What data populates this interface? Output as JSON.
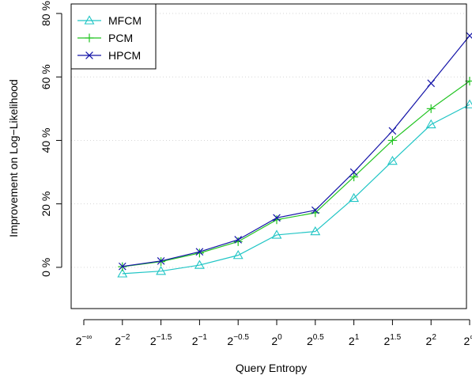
{
  "chart_data": {
    "type": "line",
    "xlabel": "Query Entropy",
    "ylabel": "Improvement on Log−Likelihood",
    "x_ticks": [
      {
        "base": "2",
        "exp": "−∞"
      },
      {
        "base": "2",
        "exp": "−2"
      },
      {
        "base": "2",
        "exp": "−1.5"
      },
      {
        "base": "2",
        "exp": "−1"
      },
      {
        "base": "2",
        "exp": "−0.5"
      },
      {
        "base": "2",
        "exp": "0"
      },
      {
        "base": "2",
        "exp": "0.5"
      },
      {
        "base": "2",
        "exp": "1"
      },
      {
        "base": "2",
        "exp": "1.5"
      },
      {
        "base": "2",
        "exp": "2"
      },
      {
        "base": "2",
        "exp": "∞"
      }
    ],
    "y_ticks": [
      "0 %",
      "20 %",
      "40 %",
      "60 %",
      "80 %"
    ],
    "y_tick_values": [
      0,
      20,
      40,
      60,
      80
    ],
    "ylim": [
      -13,
      83
    ],
    "grid": true,
    "legend_position": "top-left",
    "x_positions": [
      0.5,
      1.5,
      2.5,
      3.5,
      4.5,
      5.5,
      6.5,
      7.5,
      8.5,
      9.5
    ],
    "series": [
      {
        "name": "MFCM",
        "color": "#20C5C5",
        "marker": "triangle",
        "values": [
          -2.0,
          -1.2,
          0.7,
          3.8,
          10.2,
          11.3,
          21.8,
          33.5,
          45.0,
          51.3
        ]
      },
      {
        "name": "PCM",
        "color": "#22C422",
        "marker": "plus",
        "values": [
          0.2,
          1.8,
          4.5,
          8.1,
          15.0,
          17.2,
          28.5,
          40.0,
          50.0,
          58.7
        ]
      },
      {
        "name": "HPCM",
        "color": "#1414A8",
        "marker": "cross",
        "values": [
          0.3,
          2.0,
          4.9,
          8.7,
          15.6,
          18.0,
          30.0,
          43.0,
          58.0,
          73.0
        ]
      }
    ]
  }
}
